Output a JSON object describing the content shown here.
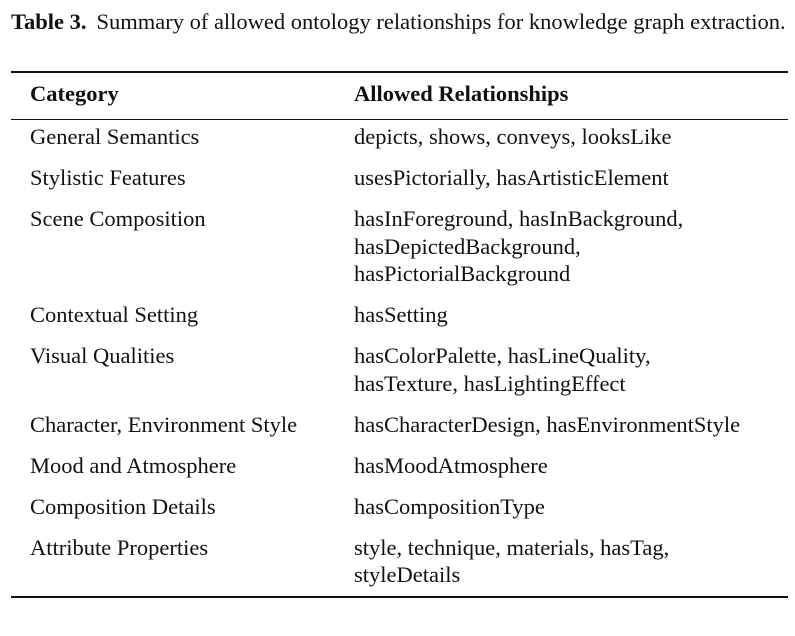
{
  "caption": {
    "label": "Table 3.",
    "text": "Summary of allowed ontology relationships for knowledge graph extraction."
  },
  "table": {
    "headers": [
      "Category",
      "Allowed Relationships"
    ],
    "rows": [
      {
        "category": "General Semantics",
        "relationships": [
          "depicts, shows, conveys, looksLike"
        ]
      },
      {
        "category": "Stylistic Features",
        "relationships": [
          "usesPictorially, hasArtisticElement"
        ]
      },
      {
        "category": "Scene Composition",
        "relationships": [
          "hasInForeground, hasInBackground,",
          "hasDepictedBackground,",
          "hasPictorialBackground"
        ]
      },
      {
        "category": "Contextual Setting",
        "relationships": [
          "hasSetting"
        ]
      },
      {
        "category": "Visual Qualities",
        "relationships": [
          "hasColorPalette, hasLineQuality,",
          "hasTexture, hasLightingEffect"
        ]
      },
      {
        "category": "Character, Environment Style",
        "relationships": [
          "hasCharacterDesign, hasEnvironmentStyle"
        ]
      },
      {
        "category": "Mood and Atmosphere",
        "relationships": [
          "hasMoodAtmosphere"
        ]
      },
      {
        "category": "Composition Details",
        "relationships": [
          "hasCompositionType"
        ]
      },
      {
        "category": "Attribute Properties",
        "relationships": [
          "style, technique, materials, hasTag,",
          "styleDetails"
        ]
      }
    ]
  }
}
